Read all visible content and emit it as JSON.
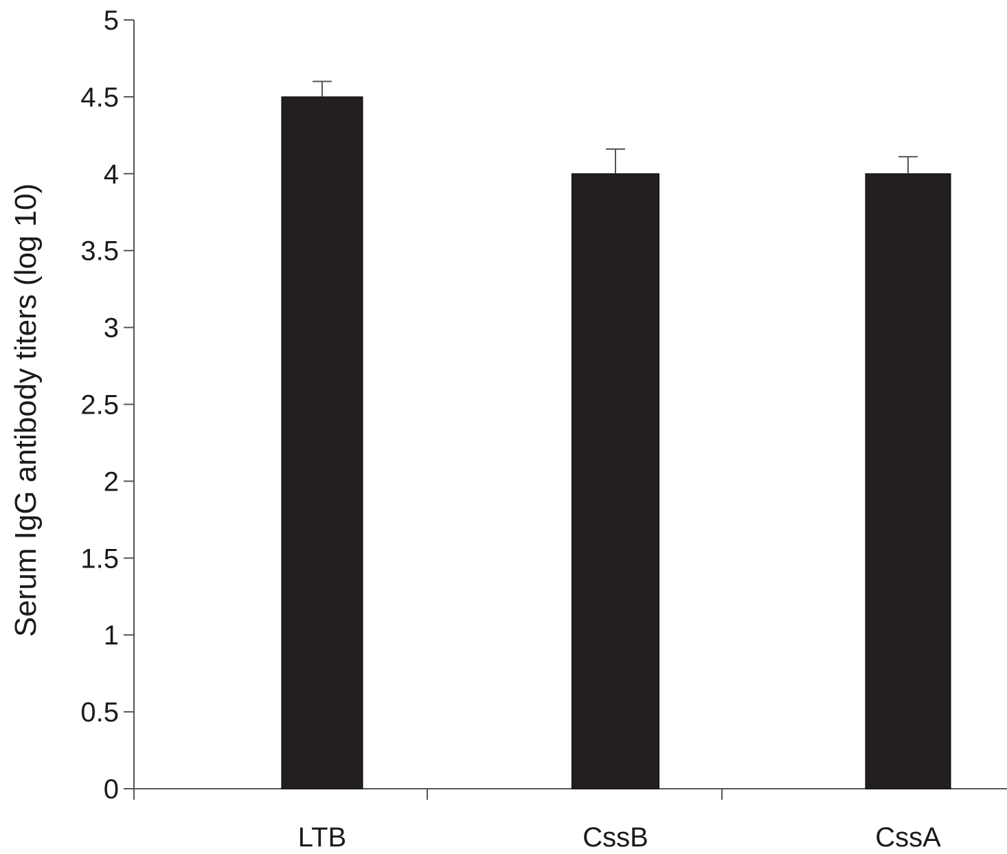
{
  "chart_data": {
    "type": "bar",
    "title": "",
    "xlabel": "",
    "ylabel": "Serum IgG antibody titers (log 10)",
    "categories": [
      "LTB",
      "CssB",
      "CssA"
    ],
    "values": [
      4.5,
      4.0,
      4.0
    ],
    "error_upper": [
      0.1,
      0.16,
      0.11
    ],
    "ylim": [
      0,
      5
    ],
    "yticks": [
      0,
      0.5,
      1,
      1.5,
      2,
      2.5,
      3,
      3.5,
      4,
      4.5,
      5
    ],
    "ytick_labels": [
      "0",
      "0.5",
      "1",
      "1.5",
      "2",
      "2.5",
      "3",
      "3.5",
      "4",
      "4.5",
      "5"
    ],
    "grid": false,
    "legend": "none",
    "bar_color": "#231f20"
  }
}
